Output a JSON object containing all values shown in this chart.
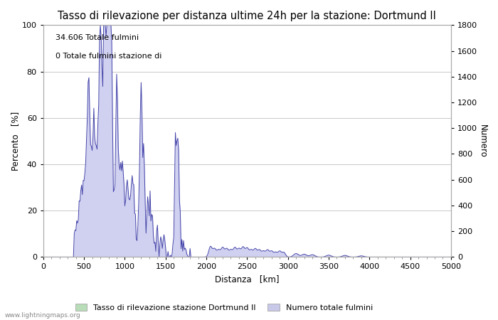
{
  "title": "Tasso di rilevazione per distanza ultime 24h per la stazione: Dortmund II",
  "xlabel": "Distanza   [km]",
  "ylabel_left": "Percento   [%]",
  "ylabel_right": "Numero",
  "annotation_line1": "34.606 Totale fulmini",
  "annotation_line2": "0 Totale fulmini stazione di",
  "watermark": "www.lightningmaps.org",
  "xlim": [
    0,
    5000
  ],
  "ylim_left": [
    0,
    100
  ],
  "ylim_right": [
    0,
    1800
  ],
  "xticks": [
    0,
    500,
    1000,
    1500,
    2000,
    2500,
    3000,
    3500,
    4000,
    4500,
    5000
  ],
  "yticks_left": [
    0,
    20,
    40,
    60,
    80,
    100
  ],
  "yticks_right": [
    0,
    200,
    400,
    600,
    800,
    1000,
    1200,
    1400,
    1600,
    1800
  ],
  "legend_label1": "Tasso di rilevazione stazione Dortmund II",
  "legend_label2": "Numero totale fulmini",
  "legend_color1": "#b8ddb8",
  "legend_color2": "#c8c8e8",
  "fill_color": "#d0d0f0",
  "line_color": "#4444aa",
  "bg_color": "#ffffff",
  "grid_color": "#c8c8c8",
  "title_fontsize": 10.5,
  "label_fontsize": 8.5,
  "tick_fontsize": 8,
  "annotation_fontsize": 8
}
